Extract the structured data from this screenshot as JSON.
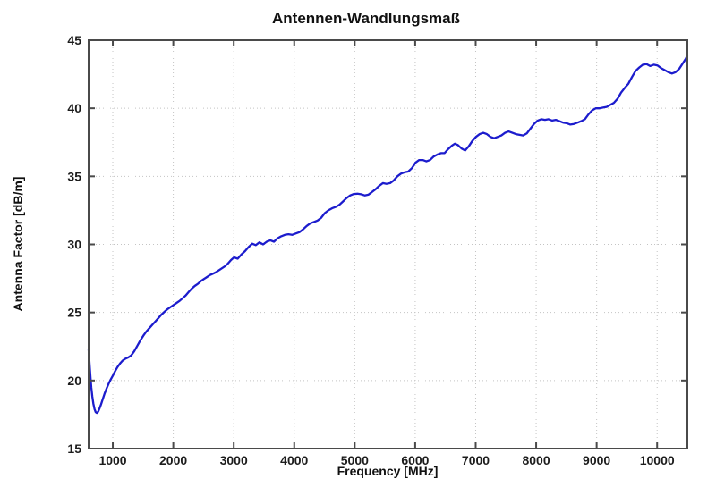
{
  "chart_data": {
    "type": "line",
    "title": "Antennen-Wandlungsmaß",
    "xlabel": "Frequency [MHz]",
    "ylabel": "Antenna Factor [dB/m]",
    "xlim": [
      600,
      10500
    ],
    "ylim": [
      15,
      45
    ],
    "x_ticks": [
      1000,
      2000,
      3000,
      4000,
      5000,
      6000,
      7000,
      8000,
      9000,
      10000
    ],
    "y_ticks": [
      15,
      20,
      25,
      30,
      35,
      40,
      45
    ],
    "grid": "dotted",
    "legend": "none",
    "line_color": "#1c1ccd",
    "axis_color": "#4a4a4a",
    "grid_color": "#c4c4c4",
    "text_color": "#1c1c1c",
    "background": "#ffffff",
    "series": [
      {
        "name": "antenna-factor",
        "x": [
          600,
          610,
          620,
          632,
          645,
          660,
          678,
          697,
          717,
          737,
          758,
          780,
          805,
          835,
          865,
          900,
          935,
          968,
          1000,
          1040,
          1080,
          1120,
          1160,
          1205,
          1255,
          1305,
          1355,
          1405,
          1455,
          1505,
          1555,
          1605,
          1655,
          1705,
          1755,
          1805,
          1855,
          1905,
          1955,
          2005,
          2055,
          2105,
          2155,
          2205,
          2255,
          2305,
          2355,
          2405,
          2455,
          2505,
          2555,
          2605,
          2655,
          2705,
          2755,
          2805,
          2855,
          2905,
          2955,
          3005,
          3065,
          3125,
          3185,
          3245,
          3305,
          3365,
          3425,
          3485,
          3545,
          3605,
          3665,
          3725,
          3785,
          3845,
          3905,
          3965,
          4025,
          4085,
          4145,
          4205,
          4265,
          4325,
          4385,
          4445,
          4505,
          4565,
          4625,
          4685,
          4745,
          4805,
          4865,
          4925,
          4985,
          5045,
          5105,
          5165,
          5225,
          5285,
          5345,
          5405,
          5465,
          5525,
          5585,
          5645,
          5705,
          5765,
          5825,
          5885,
          5945,
          6005,
          6065,
          6125,
          6185,
          6245,
          6305,
          6365,
          6425,
          6485,
          6545,
          6605,
          6655,
          6705,
          6765,
          6825,
          6885,
          6945,
          7005,
          7065,
          7125,
          7185,
          7245,
          7305,
          7365,
          7425,
          7485,
          7545,
          7605,
          7665,
          7725,
          7785,
          7845,
          7905,
          7965,
          8025,
          8085,
          8145,
          8205,
          8265,
          8325,
          8385,
          8445,
          8505,
          8565,
          8625,
          8685,
          8745,
          8805,
          8865,
          8925,
          8985,
          9045,
          9105,
          9165,
          9225,
          9285,
          9345,
          9405,
          9465,
          9525,
          9585,
          9645,
          9705,
          9765,
          9825,
          9885,
          9945,
          10005,
          10065,
          10125,
          10185,
          10245,
          10305,
          10365,
          10425,
          10475,
          10500
        ],
        "y": [
          22.3,
          21.6,
          20.9,
          20.15,
          19.5,
          18.85,
          18.3,
          17.9,
          17.68,
          17.62,
          17.72,
          17.95,
          18.25,
          18.65,
          19.05,
          19.45,
          19.8,
          20.1,
          20.35,
          20.7,
          21.0,
          21.25,
          21.45,
          21.6,
          21.7,
          21.85,
          22.15,
          22.55,
          22.95,
          23.3,
          23.6,
          23.85,
          24.1,
          24.35,
          24.6,
          24.85,
          25.05,
          25.25,
          25.4,
          25.55,
          25.7,
          25.85,
          26.05,
          26.25,
          26.5,
          26.75,
          26.95,
          27.1,
          27.3,
          27.45,
          27.6,
          27.75,
          27.85,
          27.95,
          28.1,
          28.25,
          28.4,
          28.6,
          28.85,
          29.05,
          28.95,
          29.25,
          29.5,
          29.8,
          30.05,
          29.95,
          30.15,
          30.0,
          30.2,
          30.3,
          30.2,
          30.45,
          30.6,
          30.7,
          30.75,
          30.7,
          30.8,
          30.9,
          31.1,
          31.35,
          31.55,
          31.65,
          31.75,
          31.95,
          32.3,
          32.5,
          32.65,
          32.75,
          32.9,
          33.15,
          33.4,
          33.6,
          33.7,
          33.72,
          33.68,
          33.6,
          33.65,
          33.85,
          34.05,
          34.3,
          34.5,
          34.45,
          34.5,
          34.7,
          35.0,
          35.2,
          35.3,
          35.35,
          35.6,
          36.0,
          36.2,
          36.2,
          36.1,
          36.2,
          36.45,
          36.6,
          36.7,
          36.7,
          37.0,
          37.25,
          37.4,
          37.3,
          37.05,
          36.9,
          37.2,
          37.6,
          37.9,
          38.1,
          38.2,
          38.1,
          37.9,
          37.8,
          37.9,
          38.0,
          38.2,
          38.3,
          38.2,
          38.1,
          38.05,
          38.0,
          38.15,
          38.5,
          38.85,
          39.1,
          39.2,
          39.15,
          39.2,
          39.1,
          39.15,
          39.05,
          38.95,
          38.9,
          38.8,
          38.85,
          38.95,
          39.05,
          39.2,
          39.55,
          39.85,
          40.0,
          40.0,
          40.05,
          40.1,
          40.25,
          40.4,
          40.7,
          41.15,
          41.5,
          41.8,
          42.3,
          42.75,
          43.0,
          43.2,
          43.25,
          43.1,
          43.2,
          43.15,
          42.95,
          42.8,
          42.65,
          42.55,
          42.65,
          42.9,
          43.3,
          43.65,
          43.9
        ]
      }
    ]
  }
}
